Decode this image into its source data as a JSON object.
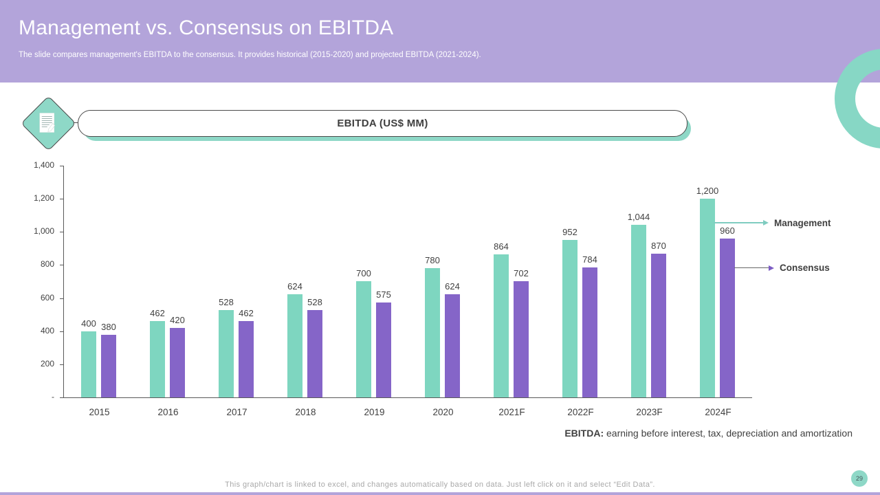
{
  "slide": {
    "title": "Management vs. Consensus on EBITDA",
    "subtitle": "The slide compares management's EBITDA to the consensus. It provides historical (2015-2020) and projected EBITDA (2021-2024).",
    "section_title": "EBITDA (US$ MM)",
    "footnote_bold": "EBITDA:",
    "footnote_rest": " earning before interest, tax, depreciation and amortization",
    "footer_note": "This graph/chart is linked to excel, and changes automatically based on data. Just left click on it and select “Edit Data”.",
    "page_number": "29"
  },
  "chart_data": {
    "type": "bar",
    "title": "EBITDA (US$ MM)",
    "categories": [
      "2015",
      "2016",
      "2017",
      "2018",
      "2019",
      "2020",
      "2021F",
      "2022F",
      "2023F",
      "2024F"
    ],
    "series": [
      {
        "name": "Management",
        "color": "#7ed6c0",
        "values": [
          400,
          462,
          528,
          624,
          700,
          780,
          864,
          952,
          1044,
          1200
        ],
        "labels": [
          "400",
          "462",
          "528",
          "624",
          "700",
          "780",
          "864",
          "952",
          "1,044",
          "1,200"
        ]
      },
      {
        "name": "Consensus",
        "color": "#8565c8",
        "values": [
          380,
          420,
          462,
          528,
          575,
          624,
          702,
          784,
          870,
          960
        ],
        "labels": [
          "380",
          "420",
          "462",
          "528",
          "575",
          "624",
          "702",
          "784",
          "870",
          "960"
        ]
      }
    ],
    "y_ticks": [
      "1,400",
      "1,200",
      "1,000",
      "800",
      "600",
      "400",
      "200",
      "-"
    ],
    "ylim": [
      0,
      1400
    ],
    "grid": false,
    "legend_position": "right"
  },
  "colors": {
    "header_bg": "#b3a4da",
    "accent_teal": "#8ed8c7",
    "bar_teal": "#7ed6c0",
    "bar_purple": "#8565c8",
    "legend_line_teal": "#7fccc0",
    "legend_line_dark": "#666666",
    "legend_arrow_purple": "#7c5cc4",
    "text_dark": "#3f3f3f",
    "axis": "#595959",
    "footer_gray": "#a8a8a8"
  }
}
